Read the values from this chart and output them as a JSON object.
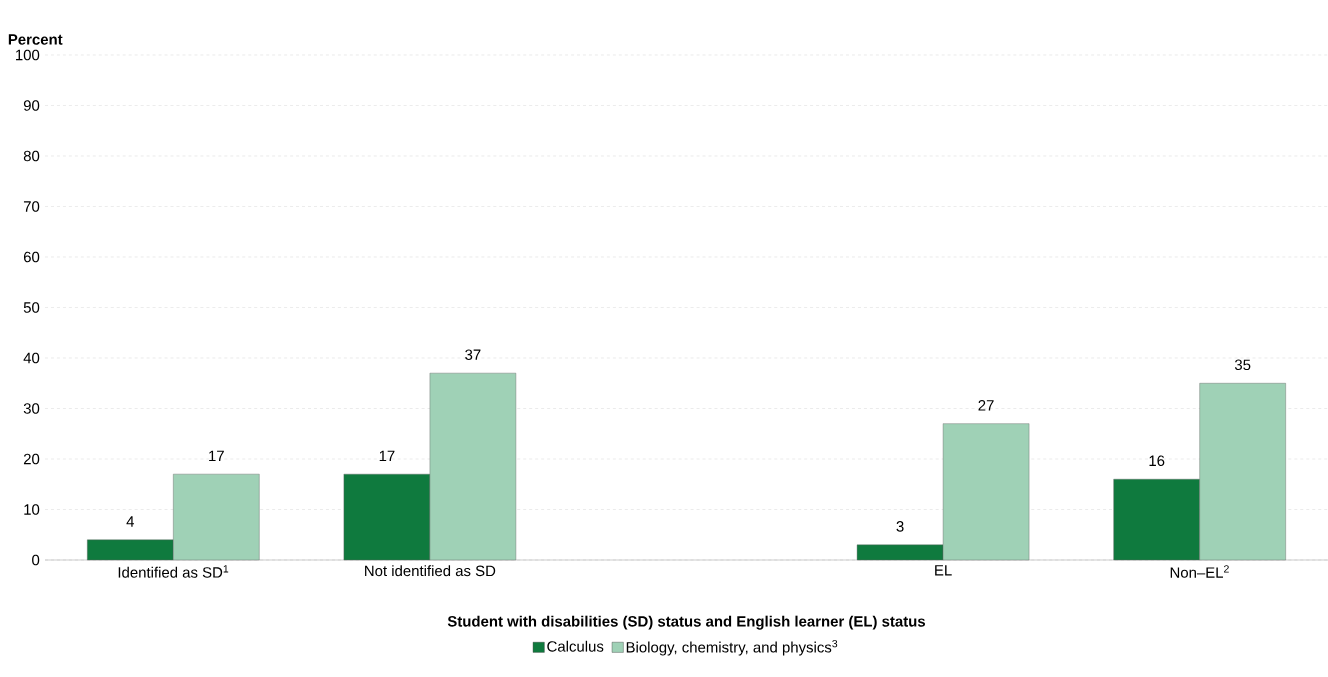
{
  "chart_data": {
    "type": "bar",
    "ylabel": "Percent",
    "xlabel": "Student with disabilities (SD) status and English learner (EL) status",
    "categories": [
      "Identified as SD$^{1}$",
      "Not identified as SD",
      null,
      "EL",
      "Non–EL$^{2}$"
    ],
    "series": [
      {
        "name": "Calculus",
        "color": "#0f7a3e",
        "values": [
          4,
          17,
          null,
          3,
          16
        ]
      },
      {
        "name": "Biology, chemistry, and physics$^{3}$",
        "color": "#9fd1b6",
        "values": [
          17,
          37,
          null,
          27,
          35
        ]
      }
    ],
    "ylim": [
      0,
      100
    ],
    "yticks": [
      0,
      10,
      20,
      30,
      40,
      50,
      60,
      70,
      80,
      90,
      100
    ],
    "grid": "y",
    "data_labels": true,
    "legend": "bottom"
  }
}
